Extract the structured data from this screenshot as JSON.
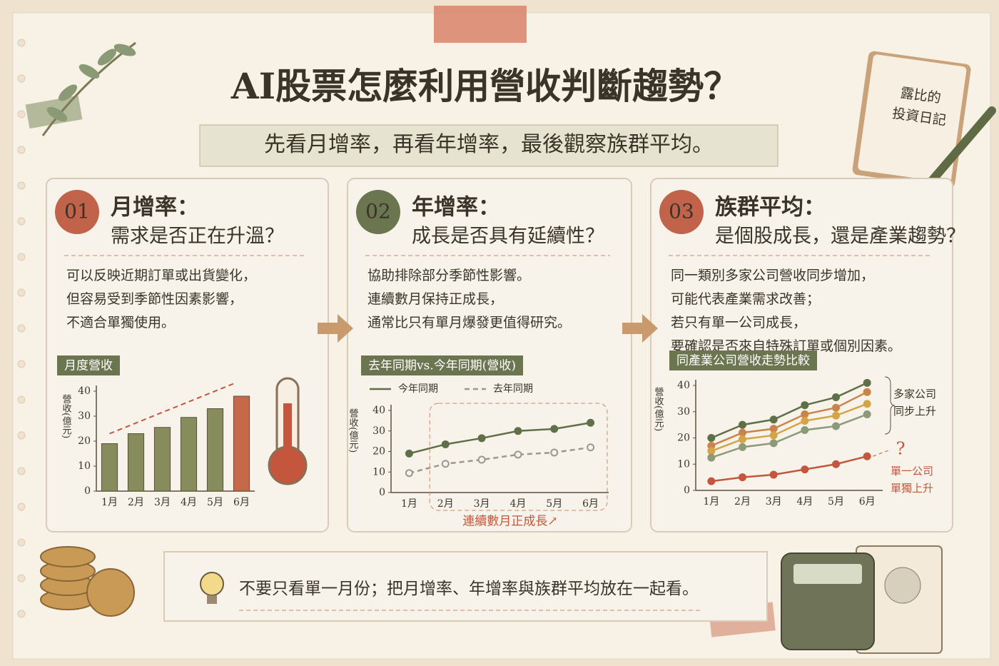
{
  "header": {
    "title": "AI股票怎麼利用營收判斷趨勢？",
    "subtitle": "先看月增率，再看年增率，最後觀察族群平均。"
  },
  "journal": {
    "lines": [
      "露比的",
      "投資日記"
    ]
  },
  "panels": [
    {
      "number": "01",
      "heading": "月增率：",
      "question": "需求是否正在升溫？",
      "body": [
        "可以反映近期訂單或出貨變化，",
        "但容易受到季節性因素影響，",
        "不適合單獨使用。"
      ]
    },
    {
      "number": "02",
      "heading": "年增率：",
      "question": "成長是否具有延續性？",
      "body": [
        "協助排除部分季節性影響。",
        "連續數月保持正成長，",
        "通常比只有單月爆發更值得研究。"
      ]
    },
    {
      "number": "03",
      "heading": "族群平均：",
      "question": "是個股成長，還是產業趨勢？",
      "body": [
        "同一類別多家公司營收同步增加，",
        "可能代表產業需求改善；",
        "若只有單一公司成長，",
        "要確認是否來自特殊訂單或個別因素。"
      ]
    }
  ],
  "footer": {
    "text": "不要只看單一月份；把月增率、年增率與族群平均放在一起看。"
  },
  "chart_data": [
    {
      "type": "bar",
      "title": "月度營收",
      "y_label": "營收(億元)",
      "categories": [
        "1月",
        "2月",
        "3月",
        "4月",
        "5月",
        "6月"
      ],
      "values": [
        19,
        23,
        25.5,
        29.5,
        33,
        38
      ],
      "colors": [
        "#878c5c",
        "#878c5c",
        "#878c5c",
        "#878c5c",
        "#878c5c",
        "#c46a4a"
      ],
      "ylim": [
        0,
        40
      ],
      "yticks": [
        0,
        10,
        20,
        30,
        40
      ]
    },
    {
      "type": "line",
      "title": "去年同期vs.今年同期(營收)",
      "y_label": "營收(億元)",
      "categories": [
        "1月",
        "2月",
        "3月",
        "4月",
        "5月",
        "6月"
      ],
      "series": [
        {
          "name": "今年同期",
          "color": "#5f7048",
          "dashed": false,
          "values": [
            19,
            23.5,
            26.5,
            30,
            31,
            34
          ]
        },
        {
          "name": "去年同期",
          "color": "#9a9a8a",
          "dashed": true,
          "values": [
            9.5,
            14,
            16,
            18.5,
            19.5,
            22
          ]
        }
      ],
      "annotations": [
        "連續數月正成長↗"
      ],
      "ylim": [
        0,
        40
      ],
      "yticks": [
        0,
        10,
        20,
        30,
        40
      ]
    },
    {
      "type": "line",
      "title": "同產業公司營收走勢比較",
      "y_label": "營收(億元)",
      "categories": [
        "1月",
        "2月",
        "3月",
        "4月",
        "5月",
        "6月"
      ],
      "series": [
        {
          "color": "#5f7048",
          "values": [
            20,
            25,
            27,
            32.5,
            35.5,
            41
          ]
        },
        {
          "color": "#c9844a",
          "values": [
            17,
            22,
            23.5,
            29,
            31.5,
            37.5
          ]
        },
        {
          "color": "#d4a548",
          "values": [
            15,
            19.5,
            21,
            26.5,
            28.5,
            33
          ]
        },
        {
          "color": "#8d9a78",
          "values": [
            12.5,
            16.5,
            18,
            23,
            24.5,
            29
          ]
        },
        {
          "color": "#c4563d",
          "values": [
            3.5,
            5,
            6,
            8,
            10,
            13
          ]
        }
      ],
      "annotations": [
        [
          "多家公司",
          "同步上升"
        ],
        [
          "單一公司",
          "單獨上升"
        ],
        "?"
      ],
      "ylim": [
        0,
        40
      ],
      "yticks": [
        0,
        10,
        20,
        30,
        40
      ]
    }
  ]
}
